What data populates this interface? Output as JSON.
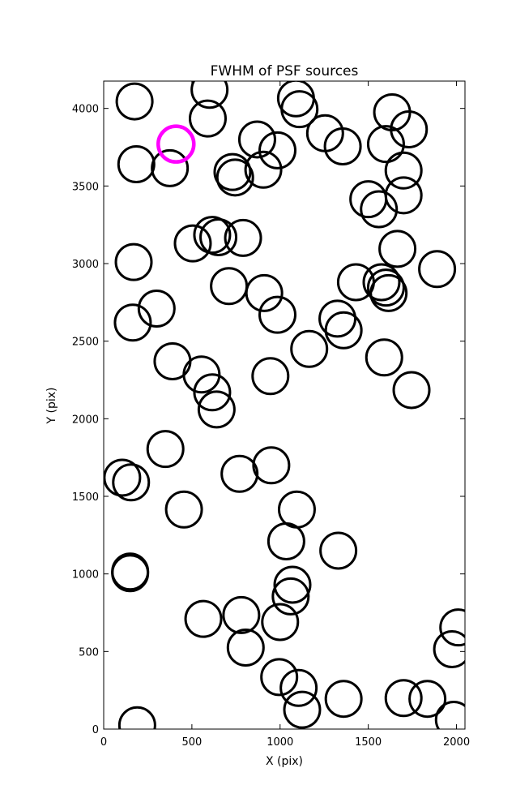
{
  "chart_data": {
    "type": "scatter",
    "title": "FWHM of PSF sources",
    "xlabel": "X (pix)",
    "ylabel": "Y (pix)",
    "xlim": [
      0,
      2048
    ],
    "ylim": [
      0,
      4176
    ],
    "xticks": [
      0,
      500,
      1000,
      1500,
      2000
    ],
    "yticks": [
      0,
      500,
      1000,
      1500,
      2000,
      2500,
      3000,
      3500,
      4000
    ],
    "xtick_labels": [
      "0",
      "500",
      "1000",
      "1500",
      "2000"
    ],
    "ytick_labels": [
      "0",
      "500",
      "1000",
      "1500",
      "2000",
      "2500",
      "3000",
      "3500",
      "4000"
    ],
    "marker": "open circle",
    "grid": false,
    "series": [
      {
        "color": "#000000",
        "points": [
          [
            175,
            4045
          ],
          [
            600,
            4120
          ],
          [
            590,
            3935
          ],
          [
            1090,
            4065
          ],
          [
            1110,
            3995
          ],
          [
            1635,
            3975
          ],
          [
            1730,
            3865
          ],
          [
            1255,
            3840
          ],
          [
            1355,
            3755
          ],
          [
            1600,
            3770
          ],
          [
            870,
            3800
          ],
          [
            985,
            3730
          ],
          [
            185,
            3640
          ],
          [
            375,
            3615
          ],
          [
            730,
            3590
          ],
          [
            745,
            3555
          ],
          [
            905,
            3605
          ],
          [
            1500,
            3415
          ],
          [
            1560,
            3350
          ],
          [
            1700,
            3600
          ],
          [
            1700,
            3440
          ],
          [
            505,
            3130
          ],
          [
            615,
            3185
          ],
          [
            650,
            3170
          ],
          [
            790,
            3165
          ],
          [
            1665,
            3095
          ],
          [
            170,
            3010
          ],
          [
            710,
            2855
          ],
          [
            910,
            2810
          ],
          [
            1430,
            2880
          ],
          [
            1575,
            2880
          ],
          [
            1600,
            2845
          ],
          [
            1615,
            2810
          ],
          [
            1890,
            2965
          ],
          [
            300,
            2710
          ],
          [
            165,
            2620
          ],
          [
            985,
            2670
          ],
          [
            1325,
            2645
          ],
          [
            1360,
            2570
          ],
          [
            1165,
            2450
          ],
          [
            390,
            2370
          ],
          [
            555,
            2285
          ],
          [
            615,
            2170
          ],
          [
            640,
            2060
          ],
          [
            945,
            2275
          ],
          [
            1590,
            2395
          ],
          [
            1745,
            2185
          ],
          [
            350,
            1805
          ],
          [
            105,
            1620
          ],
          [
            155,
            1590
          ],
          [
            770,
            1645
          ],
          [
            950,
            1700
          ],
          [
            455,
            1415
          ],
          [
            1095,
            1415
          ],
          [
            1035,
            1210
          ],
          [
            1330,
            1150
          ],
          [
            150,
            1005
          ],
          [
            150,
            1015
          ],
          [
            1070,
            930
          ],
          [
            1060,
            855
          ],
          [
            565,
            710
          ],
          [
            780,
            735
          ],
          [
            1000,
            690
          ],
          [
            805,
            525
          ],
          [
            2010,
            655
          ],
          [
            1975,
            515
          ],
          [
            995,
            335
          ],
          [
            1105,
            265
          ],
          [
            1125,
            125
          ],
          [
            1360,
            195
          ],
          [
            1700,
            200
          ],
          [
            1835,
            195
          ],
          [
            1985,
            60
          ],
          [
            190,
            25
          ]
        ]
      },
      {
        "color": "#ff00ff",
        "points": [
          [
            410,
            3770
          ]
        ]
      }
    ]
  }
}
